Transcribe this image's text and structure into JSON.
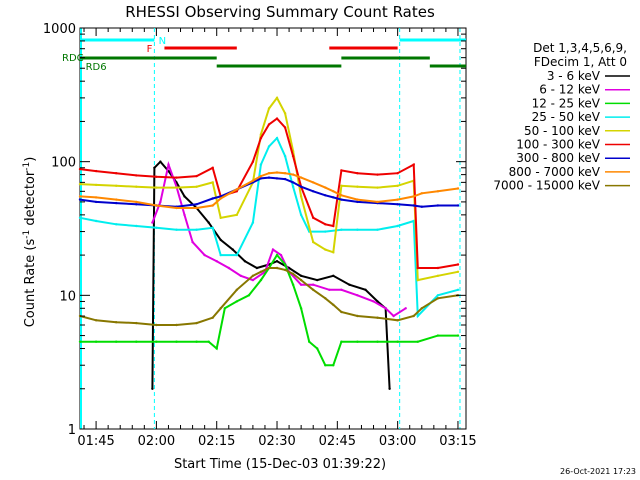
{
  "chart_data": {
    "type": "line",
    "title": "RHESSI Observing Summary Count Rates",
    "xlabel": "Start Time (15-Dec-03 01:39:22)",
    "ylabel_main": "Count Rate (s",
    "ylabel_sup": "-1",
    "ylabel_rest": " detector",
    "ylabel_sup2": "-1",
    "ylabel_end": ")",
    "yscale": "log",
    "ylim": [
      1,
      1000
    ],
    "xlim_minutes": [
      101,
      197
    ],
    "x_ticks": [
      {
        "label": "01:45",
        "m": 105
      },
      {
        "label": "02:00",
        "m": 120
      },
      {
        "label": "02:15",
        "m": 135
      },
      {
        "label": "02:30",
        "m": 150
      },
      {
        "label": "02:45",
        "m": 165
      },
      {
        "label": "03:00",
        "m": 180
      },
      {
        "label": "03:15",
        "m": 195
      }
    ],
    "y_ticks": [
      {
        "label": "1",
        "v": 1
      },
      {
        "label": "10",
        "v": 10
      },
      {
        "label": "100",
        "v": 100
      },
      {
        "label": "1000",
        "v": 1000
      }
    ],
    "legend_header": [
      "Det 1,3,4,5,6,9,",
      "FDecim 1, Att 0"
    ],
    "series": [
      {
        "name": "3 - 6 keV",
        "color": "#000000",
        "points": [
          [
            119,
            2
          ],
          [
            119.5,
            90
          ],
          [
            121,
            100
          ],
          [
            123,
            85
          ],
          [
            125,
            70
          ],
          [
            127,
            55
          ],
          [
            130,
            45
          ],
          [
            133,
            35
          ],
          [
            136,
            26
          ],
          [
            139,
            22
          ],
          [
            142,
            18
          ],
          [
            145,
            16
          ],
          [
            148,
            17
          ],
          [
            150,
            18
          ],
          [
            153,
            16
          ],
          [
            156,
            14
          ],
          [
            160,
            13
          ],
          [
            164,
            14
          ],
          [
            168,
            12
          ],
          [
            172,
            11
          ],
          [
            175,
            9
          ],
          [
            177,
            8
          ],
          [
            178,
            2
          ]
        ]
      },
      {
        "name": "6 - 12 keV",
        "color": "#e000e0",
        "points": [
          [
            119,
            35
          ],
          [
            121,
            50
          ],
          [
            123,
            95
          ],
          [
            125,
            65
          ],
          [
            127,
            40
          ],
          [
            129,
            25
          ],
          [
            132,
            20
          ],
          [
            135,
            18
          ],
          [
            138,
            16
          ],
          [
            141,
            14
          ],
          [
            144,
            13
          ],
          [
            147,
            15
          ],
          [
            149,
            22
          ],
          [
            151,
            20
          ],
          [
            153,
            15
          ],
          [
            156,
            12
          ],
          [
            159,
            12
          ],
          [
            163,
            11
          ],
          [
            166,
            11
          ],
          [
            170,
            10
          ],
          [
            174,
            9
          ],
          [
            177,
            8
          ],
          [
            179,
            7
          ],
          [
            182,
            8
          ]
        ]
      },
      {
        "name": "12 - 25 keV",
        "color": "#00dd00",
        "points": [
          [
            101,
            4.5
          ],
          [
            105,
            4.5
          ],
          [
            110,
            4.5
          ],
          [
            115,
            4.5
          ],
          [
            120,
            4.5
          ],
          [
            125,
            4.5
          ],
          [
            130,
            4.5
          ],
          [
            133,
            4.5
          ],
          [
            135,
            4
          ],
          [
            137,
            8
          ],
          [
            140,
            9
          ],
          [
            143,
            10
          ],
          [
            146,
            13
          ],
          [
            148,
            16
          ],
          [
            150,
            20
          ],
          [
            152,
            17
          ],
          [
            154,
            12
          ],
          [
            156,
            8
          ],
          [
            158,
            4.5
          ],
          [
            160,
            4
          ],
          [
            162,
            3
          ],
          [
            164,
            3
          ],
          [
            166,
            4.5
          ],
          [
            170,
            4.5
          ],
          [
            175,
            4.5
          ],
          [
            180,
            4.5
          ],
          [
            185,
            4.5
          ],
          [
            190,
            5
          ],
          [
            195,
            5
          ]
        ]
      },
      {
        "name": "25 - 50 keV",
        "color": "#00eeee",
        "points": [
          [
            101,
            38
          ],
          [
            105,
            36
          ],
          [
            110,
            34
          ],
          [
            115,
            33
          ],
          [
            120,
            32
          ],
          [
            125,
            31
          ],
          [
            130,
            31
          ],
          [
            134,
            32
          ],
          [
            136,
            20
          ],
          [
            140,
            20
          ],
          [
            144,
            35
          ],
          [
            146,
            95
          ],
          [
            148,
            130
          ],
          [
            150,
            150
          ],
          [
            152,
            110
          ],
          [
            154,
            65
          ],
          [
            156,
            40
          ],
          [
            158,
            30
          ],
          [
            162,
            30
          ],
          [
            166,
            31
          ],
          [
            170,
            31
          ],
          [
            175,
            31
          ],
          [
            180,
            33
          ],
          [
            184,
            36
          ],
          [
            185,
            7
          ],
          [
            190,
            10
          ],
          [
            195,
            11
          ]
        ]
      },
      {
        "name": "50 - 100 keV",
        "color": "#d4d400",
        "points": [
          [
            101,
            68
          ],
          [
            105,
            67
          ],
          [
            110,
            66
          ],
          [
            115,
            65
          ],
          [
            120,
            64
          ],
          [
            125,
            64
          ],
          [
            130,
            65
          ],
          [
            134,
            70
          ],
          [
            136,
            38
          ],
          [
            140,
            40
          ],
          [
            144,
            70
          ],
          [
            146,
            160
          ],
          [
            148,
            250
          ],
          [
            150,
            300
          ],
          [
            152,
            230
          ],
          [
            154,
            120
          ],
          [
            156,
            55
          ],
          [
            159,
            25
          ],
          [
            162,
            22
          ],
          [
            164,
            21
          ],
          [
            166,
            66
          ],
          [
            170,
            65
          ],
          [
            175,
            64
          ],
          [
            180,
            66
          ],
          [
            184,
            72
          ],
          [
            185,
            13
          ],
          [
            190,
            14
          ],
          [
            195,
            15
          ]
        ]
      },
      {
        "name": "100 - 300 keV",
        "color": "#ee0000",
        "points": [
          [
            101,
            88
          ],
          [
            105,
            85
          ],
          [
            110,
            82
          ],
          [
            115,
            79
          ],
          [
            120,
            77
          ],
          [
            125,
            76
          ],
          [
            130,
            78
          ],
          [
            134,
            90
          ],
          [
            136,
            55
          ],
          [
            140,
            60
          ],
          [
            144,
            100
          ],
          [
            146,
            150
          ],
          [
            148,
            190
          ],
          [
            150,
            210
          ],
          [
            152,
            180
          ],
          [
            154,
            110
          ],
          [
            156,
            65
          ],
          [
            159,
            38
          ],
          [
            162,
            34
          ],
          [
            164,
            33
          ],
          [
            166,
            86
          ],
          [
            170,
            82
          ],
          [
            175,
            80
          ],
          [
            180,
            82
          ],
          [
            184,
            95
          ],
          [
            185,
            16
          ],
          [
            190,
            16
          ],
          [
            195,
            17
          ]
        ]
      },
      {
        "name": "300 - 800 keV",
        "color": "#0000cc",
        "points": [
          [
            101,
            52
          ],
          [
            105,
            50
          ],
          [
            110,
            49
          ],
          [
            115,
            48
          ],
          [
            120,
            47
          ],
          [
            125,
            46
          ],
          [
            130,
            48
          ],
          [
            134,
            53
          ],
          [
            136,
            55
          ],
          [
            140,
            62
          ],
          [
            144,
            70
          ],
          [
            146,
            75
          ],
          [
            148,
            76
          ],
          [
            150,
            75
          ],
          [
            152,
            74
          ],
          [
            154,
            70
          ],
          [
            156,
            65
          ],
          [
            159,
            60
          ],
          [
            162,
            56
          ],
          [
            164,
            54
          ],
          [
            166,
            52
          ],
          [
            170,
            50
          ],
          [
            175,
            49
          ],
          [
            180,
            48
          ],
          [
            184,
            47
          ],
          [
            186,
            46
          ],
          [
            190,
            47
          ],
          [
            195,
            47
          ]
        ]
      },
      {
        "name": "800 - 7000 keV",
        "color": "#ff8800",
        "points": [
          [
            101,
            55
          ],
          [
            105,
            54
          ],
          [
            110,
            52
          ],
          [
            115,
            50
          ],
          [
            120,
            47
          ],
          [
            125,
            45
          ],
          [
            130,
            45
          ],
          [
            134,
            47
          ],
          [
            136,
            53
          ],
          [
            140,
            62
          ],
          [
            144,
            72
          ],
          [
            146,
            78
          ],
          [
            148,
            82
          ],
          [
            150,
            83
          ],
          [
            152,
            82
          ],
          [
            154,
            80
          ],
          [
            156,
            76
          ],
          [
            159,
            70
          ],
          [
            162,
            64
          ],
          [
            164,
            60
          ],
          [
            166,
            56
          ],
          [
            170,
            52
          ],
          [
            175,
            50
          ],
          [
            180,
            52
          ],
          [
            184,
            55
          ],
          [
            186,
            58
          ],
          [
            190,
            60
          ],
          [
            195,
            63
          ]
        ]
      },
      {
        "name": "7000 - 15000 keV",
        "color": "#887700",
        "points": [
          [
            101,
            7
          ],
          [
            105,
            6.5
          ],
          [
            110,
            6.3
          ],
          [
            115,
            6.2
          ],
          [
            120,
            6
          ],
          [
            125,
            6
          ],
          [
            130,
            6.2
          ],
          [
            134,
            6.8
          ],
          [
            136,
            8
          ],
          [
            140,
            11
          ],
          [
            144,
            14
          ],
          [
            146,
            15
          ],
          [
            148,
            16
          ],
          [
            150,
            16
          ],
          [
            152,
            15.5
          ],
          [
            154,
            14.5
          ],
          [
            156,
            13
          ],
          [
            159,
            11
          ],
          [
            162,
            9.5
          ],
          [
            164,
            8.5
          ],
          [
            166,
            7.5
          ],
          [
            170,
            7
          ],
          [
            175,
            6.8
          ],
          [
            180,
            6.5
          ],
          [
            184,
            7
          ],
          [
            186,
            8
          ],
          [
            190,
            9.5
          ],
          [
            195,
            10
          ]
        ]
      }
    ],
    "bars": [
      {
        "label": "N",
        "color": "#00ffff",
        "y": 40,
        "segments": [
          [
            101,
            119.5
          ],
          [
            180.5,
            197
          ]
        ]
      },
      {
        "label": "F",
        "color": "#ee0000",
        "y": 48,
        "segments": [
          [
            122,
            140
          ],
          [
            163,
            180
          ]
        ]
      },
      {
        "label": "RDC",
        "color": "#007700",
        "y": 58,
        "segments": [
          [
            101,
            135
          ],
          [
            166,
            188
          ]
        ]
      },
      {
        "label": "RD6",
        "color": "#007700",
        "y": 66,
        "segments": [
          [
            135,
            166
          ],
          [
            188,
            197
          ]
        ]
      }
    ],
    "saa_lines_minutes": [
      119.5,
      180.5,
      195.5
    ],
    "grid": false,
    "legend_position": "right"
  },
  "footer": {
    "timestamp": "26-Oct-2021 17:23"
  }
}
